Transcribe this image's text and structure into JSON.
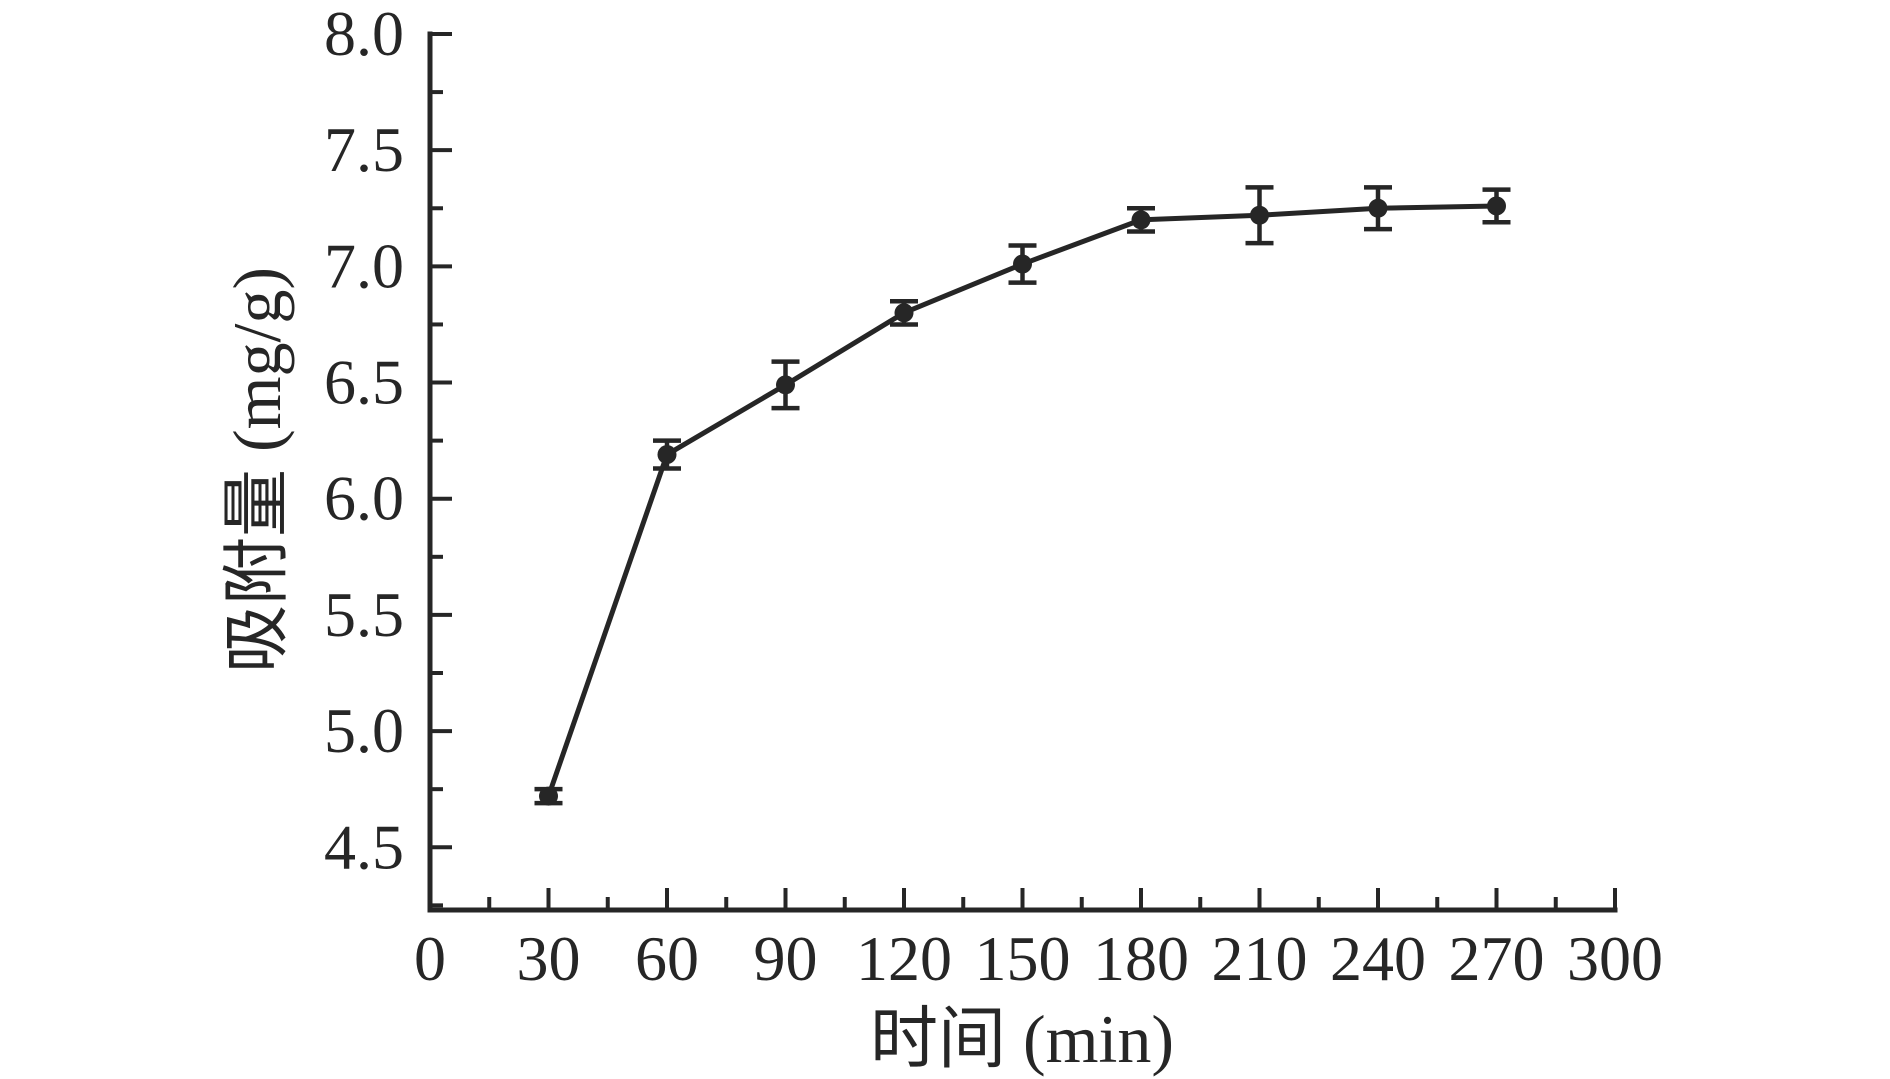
{
  "figure": {
    "background_color": "#ffffff",
    "ink_color": "#262626"
  },
  "chart_data": {
    "type": "line",
    "title": "",
    "xlabel": "时间 (min)",
    "ylabel": "吸附量 (mg/g)",
    "x": [
      30,
      60,
      90,
      120,
      150,
      180,
      210,
      240,
      270
    ],
    "series": [
      {
        "name": "吸附量",
        "y": [
          4.72,
          6.19,
          6.49,
          6.8,
          7.01,
          7.2,
          7.22,
          7.25,
          7.26
        ],
        "y_err": [
          0.03,
          0.06,
          0.1,
          0.05,
          0.08,
          0.05,
          0.12,
          0.09,
          0.07
        ],
        "marker": "filled-circle",
        "color": "#262626"
      }
    ],
    "xlim": [
      0,
      300
    ],
    "ylim": [
      4.23,
      8.0
    ],
    "x_major_ticks": [
      0,
      30,
      60,
      90,
      120,
      150,
      180,
      210,
      240,
      270,
      300
    ],
    "x_tick_labels": [
      "0",
      "30",
      "60",
      "90",
      "120",
      "150",
      "180",
      "210",
      "240",
      "270",
      "300"
    ],
    "x_minor_tick_step": 15,
    "y_major_ticks": [
      4.5,
      5.0,
      5.5,
      6.0,
      6.5,
      7.0,
      7.5,
      8.0
    ],
    "y_tick_labels": [
      "4.5",
      "5.0",
      "5.5",
      "6.0",
      "6.5",
      "7.0",
      "7.5",
      "8.0"
    ],
    "y_minor_tick_step": 0.25,
    "grid": false,
    "legend_position": "none",
    "error_bars": true,
    "tick_direction": "in",
    "spines": [
      "left",
      "bottom"
    ]
  }
}
